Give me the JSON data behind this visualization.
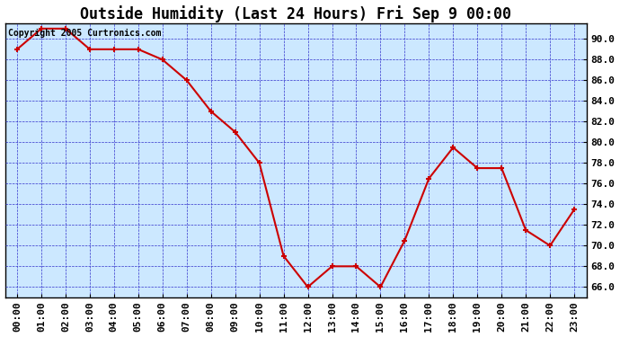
{
  "title": "Outside Humidity (Last 24 Hours) Fri Sep 9 00:00",
  "copyright": "Copyright 2005 Curtronics.com",
  "x_labels": [
    "00:00",
    "01:00",
    "02:00",
    "03:00",
    "04:00",
    "05:00",
    "06:00",
    "07:00",
    "08:00",
    "09:00",
    "10:00",
    "11:00",
    "12:00",
    "13:00",
    "14:00",
    "15:00",
    "16:00",
    "17:00",
    "18:00",
    "19:00",
    "20:00",
    "21:00",
    "22:00",
    "23:00"
  ],
  "x_values": [
    0,
    1,
    2,
    3,
    4,
    5,
    6,
    7,
    8,
    9,
    10,
    11,
    12,
    13,
    14,
    15,
    16,
    17,
    18,
    19,
    20,
    21,
    22,
    23
  ],
  "y_values": [
    89.0,
    91.0,
    91.0,
    89.0,
    89.0,
    89.0,
    88.0,
    86.0,
    83.0,
    81.0,
    78.0,
    69.0,
    66.0,
    68.0,
    68.0,
    66.0,
    70.5,
    76.5,
    79.5,
    77.5,
    77.5,
    71.5,
    70.0,
    73.5
  ],
  "line_color": "#cc0000",
  "marker_color": "#cc0000",
  "fig_bg_color": "#ffffff",
  "plot_bg_color": "#cce8ff",
  "grid_color": "#3333cc",
  "axes_color": "#000000",
  "title_color": "#000000",
  "copyright_color": "#000000",
  "ylim": [
    65.0,
    91.5
  ],
  "ytick_min": 66.0,
  "ytick_max": 90.0,
  "ytick_step": 2.0,
  "xlim_min": -0.5,
  "xlim_max": 23.5,
  "title_fontsize": 12,
  "tick_fontsize": 8,
  "copyright_fontsize": 7,
  "line_width": 1.5,
  "marker_size": 5
}
